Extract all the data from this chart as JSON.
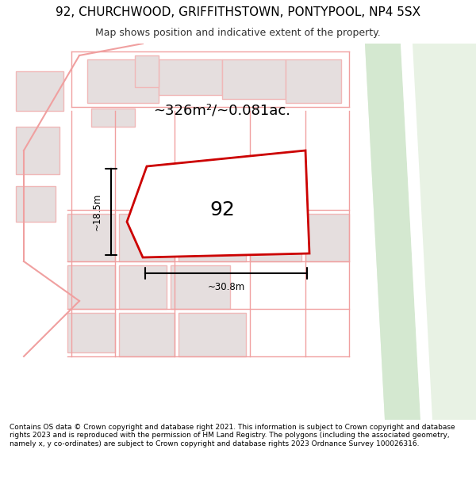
{
  "title_line1": "92, CHURCHWOOD, GRIFFITHSTOWN, PONTYPOOL, NP4 5SX",
  "title_line2": "Map shows position and indicative extent of the property.",
  "footer_text": "Contains OS data © Crown copyright and database right 2021. This information is subject to Crown copyright and database rights 2023 and is reproduced with the permission of HM Land Registry. The polygons (including the associated geometry, namely x, y co-ordinates) are subject to Crown copyright and database rights 2023 Ordnance Survey 100026316.",
  "area_label": "~326m²/~0.081ac.",
  "plot_number": "92",
  "dim_width": "~30.8m",
  "dim_height": "~18.5m",
  "background_color": "#f5f0f0",
  "map_bg": "#ffffff",
  "plot_fill": "#ffffff",
  "plot_edge": "#cc0000",
  "road_strip1_color": "#d4e8d0",
  "road_strip2_color": "#e8f2e4",
  "building_fill": "#e8e0e0",
  "building_outline": "#f0c0c0",
  "street_line_color": "#f0a0a0",
  "dim_line_color": "#000000"
}
